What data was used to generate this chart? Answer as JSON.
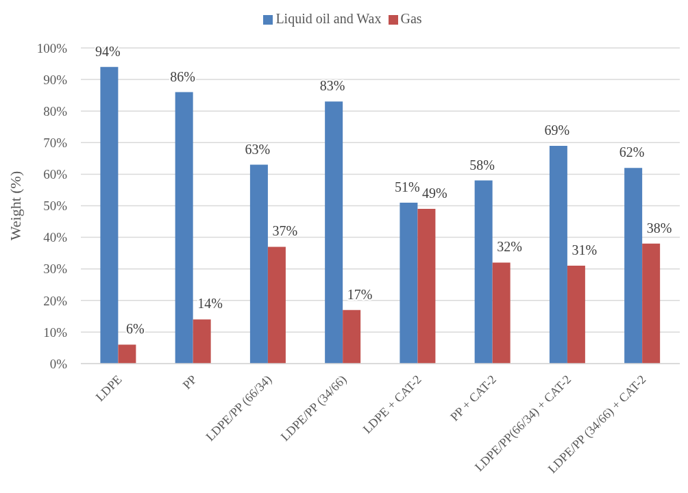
{
  "chart_data": {
    "type": "bar",
    "ylabel": "Weight (%)",
    "categories": [
      "LDPE",
      "PP",
      "LDPE/PP (66/34)",
      "LDPE/PP (34/66)",
      "LDPE + CAT-2",
      "PP + CAT-2",
      "LDPE/PP(66/34) + CAT-2",
      "LDPE/PP (34/66) + CAT-2"
    ],
    "series": [
      {
        "name": "Liquid oil and Wax",
        "color": "#4f81bd",
        "values": [
          94,
          86,
          63,
          83,
          51,
          58,
          69,
          62
        ],
        "value_labels": [
          "94%",
          "86%",
          "63%",
          "83%",
          "51%",
          "58%",
          "69%",
          "62%"
        ]
      },
      {
        "name": "Gas",
        "color": "#c0504d",
        "values": [
          6,
          14,
          37,
          17,
          49,
          32,
          31,
          38
        ],
        "value_labels": [
          "6%",
          "14%",
          "37%",
          "17%",
          "49%",
          "32%",
          "31%",
          "38%"
        ]
      }
    ],
    "ylim": [
      0,
      100
    ],
    "yticks": [
      {
        "value": 0,
        "label": "0%"
      },
      {
        "value": 10,
        "label": "10%"
      },
      {
        "value": 20,
        "label": "20%"
      },
      {
        "value": 30,
        "label": "30%"
      },
      {
        "value": 40,
        "label": "40%"
      },
      {
        "value": 50,
        "label": "50%"
      },
      {
        "value": 60,
        "label": "60%"
      },
      {
        "value": 70,
        "label": "70%"
      },
      {
        "value": 80,
        "label": "80%"
      },
      {
        "value": 90,
        "label": "90%"
      },
      {
        "value": 100,
        "label": "100%"
      }
    ],
    "grid": "y",
    "legend": "top"
  }
}
